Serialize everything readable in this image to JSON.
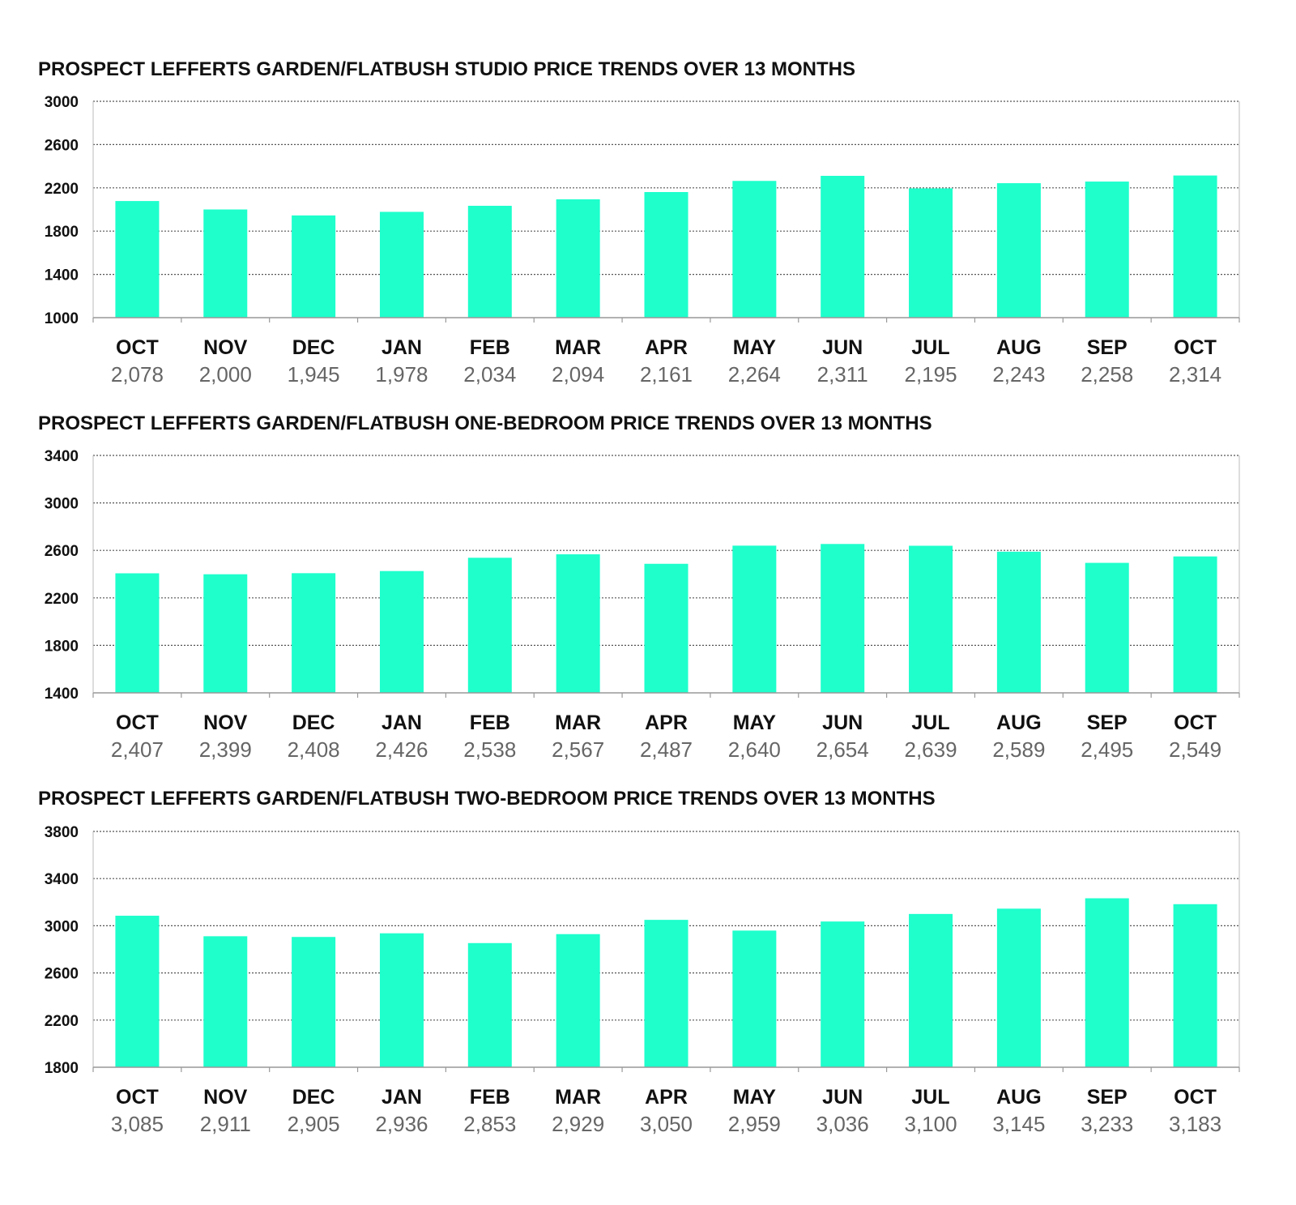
{
  "chart_data": [
    {
      "type": "bar",
      "title": "PROSPECT LEFFERTS GARDEN/FLATBUSH STUDIO PRICE TRENDS OVER 13 MONTHS",
      "categories": [
        "OCT",
        "NOV",
        "DEC",
        "JAN",
        "FEB",
        "MAR",
        "APR",
        "MAY",
        "JUN",
        "JUL",
        "AUG",
        "SEP",
        "OCT"
      ],
      "values": [
        2078,
        2000,
        1945,
        1978,
        2034,
        2094,
        2161,
        2264,
        2311,
        2195,
        2243,
        2258,
        2314
      ],
      "value_labels": [
        "2,078",
        "2,000",
        "1,945",
        "1,978",
        "2,034",
        "2,094",
        "2,161",
        "2,264",
        "2,311",
        "2,195",
        "2,243",
        "2,258",
        "2,314"
      ],
      "yticks": [
        "3000",
        "2600",
        "2200",
        "1800",
        "1400",
        "1000"
      ],
      "ylim": [
        1000,
        3000
      ],
      "grid": true,
      "bar_color": "#1effcc"
    },
    {
      "type": "bar",
      "title": "PROSPECT LEFFERTS GARDEN/FLATBUSH ONE-BEDROOM PRICE TRENDS OVER 13 MONTHS",
      "categories": [
        "OCT",
        "NOV",
        "DEC",
        "JAN",
        "FEB",
        "MAR",
        "APR",
        "MAY",
        "JUN",
        "JUL",
        "AUG",
        "SEP",
        "OCT"
      ],
      "values": [
        2407,
        2399,
        2408,
        2426,
        2538,
        2567,
        2487,
        2640,
        2654,
        2639,
        2589,
        2495,
        2549
      ],
      "value_labels": [
        "2,407",
        "2,399",
        "2,408",
        "2,426",
        "2,538",
        "2,567",
        "2,487",
        "2,640",
        "2,654",
        "2,639",
        "2,589",
        "2,495",
        "2,549"
      ],
      "yticks": [
        "3400",
        "3000",
        "2600",
        "2200",
        "1800",
        "1400"
      ],
      "ylim": [
        1400,
        3400
      ],
      "grid": true,
      "bar_color": "#1effcc"
    },
    {
      "type": "bar",
      "title": "PROSPECT LEFFERTS GARDEN/FLATBUSH TWO-BEDROOM PRICE TRENDS OVER 13 MONTHS",
      "categories": [
        "OCT",
        "NOV",
        "DEC",
        "JAN",
        "FEB",
        "MAR",
        "APR",
        "MAY",
        "JUN",
        "JUL",
        "AUG",
        "SEP",
        "OCT"
      ],
      "values": [
        3085,
        2911,
        2905,
        2936,
        2853,
        2929,
        3050,
        2959,
        3036,
        3100,
        3145,
        3233,
        3183
      ],
      "value_labels": [
        "3,085",
        "2,911",
        "2,905",
        "2,936",
        "2,853",
        "2,929",
        "3,050",
        "2,959",
        "3,036",
        "3,100",
        "3,145",
        "3,233",
        "3,183"
      ],
      "yticks": [
        "3800",
        "3400",
        "3000",
        "2600",
        "2200",
        "1800"
      ],
      "ylim": [
        1800,
        3800
      ],
      "grid": true,
      "bar_color": "#1effcc"
    }
  ]
}
